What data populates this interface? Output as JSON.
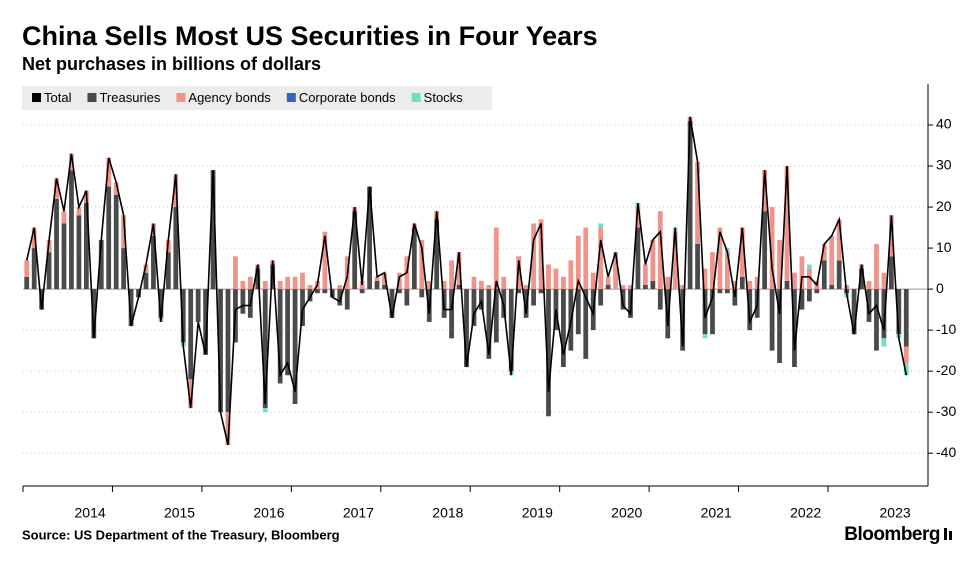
{
  "chart_data": {
    "type": "stacked-bar-line",
    "title": "China Sells Most US Securities in Four Years",
    "subtitle": "Net purchases in billions of dollars",
    "source": "Source: US Department of the Treasury, Bloomberg",
    "brand": "Bloomberg",
    "categories": [
      null,
      null,
      null,
      null,
      null,
      null,
      null,
      null,
      "2014",
      null,
      null,
      null,
      null,
      null,
      null,
      null,
      null,
      null,
      null,
      null,
      "2015",
      null,
      null,
      null,
      null,
      null,
      null,
      null,
      null,
      null,
      null,
      null,
      "2016",
      null,
      null,
      null,
      null,
      null,
      null,
      null,
      null,
      null,
      null,
      null,
      "2017",
      null,
      null,
      null,
      null,
      null,
      null,
      null,
      null,
      null,
      null,
      null,
      "2018",
      null,
      null,
      null,
      null,
      null,
      null,
      null,
      null,
      null,
      null,
      null,
      "2019",
      null,
      null,
      null,
      null,
      null,
      null,
      null,
      null,
      null,
      null,
      null,
      "2020",
      null,
      null,
      null,
      null,
      null,
      null,
      null,
      null,
      null,
      null,
      null,
      "2021",
      null,
      null,
      null,
      null,
      null,
      null,
      null,
      null,
      null,
      null,
      null,
      "2022",
      null,
      null,
      null,
      null,
      null,
      null,
      null,
      null,
      null,
      null,
      null,
      "2023",
      null,
      null
    ],
    "series": [
      {
        "name": "Total",
        "color": "#000000",
        "kind": "line",
        "values": [
          7,
          15,
          -5,
          12,
          27,
          19,
          33,
          20,
          24,
          -12,
          12,
          32,
          26,
          18,
          -9,
          -2,
          6,
          16,
          -8,
          12,
          28,
          -14,
          -29,
          -8,
          -16,
          29,
          -30,
          -38,
          -5,
          -4,
          -4,
          6,
          -28,
          7,
          -21,
          -18,
          -25,
          -5,
          -2,
          1,
          13,
          -2,
          -3,
          3,
          20,
          1,
          25,
          3,
          4,
          -7,
          3,
          4,
          16,
          10,
          -6,
          19,
          -5,
          -5,
          9,
          -19,
          -6,
          -3,
          -16,
          2,
          -4,
          -21,
          7,
          -6,
          12,
          16,
          -25,
          -5,
          -16,
          -8,
          2,
          -2,
          -6,
          12,
          3,
          9,
          -4,
          -6,
          21,
          6,
          12,
          14,
          -9,
          15,
          -14,
          42,
          31,
          -7,
          -2,
          14,
          9,
          -2,
          15,
          -8,
          -4,
          29,
          5,
          -6,
          30,
          -15,
          3,
          3,
          1,
          11,
          13,
          17,
          -1,
          -11,
          6,
          -6,
          -4,
          -10,
          18,
          -12,
          -21
        ]
      },
      {
        "name": "Treasuries",
        "color": "#4a4a4a",
        "kind": "bar",
        "values": [
          3,
          10,
          -5,
          9,
          22,
          16,
          29,
          18,
          21,
          -12,
          12,
          25,
          23,
          10,
          -9,
          -2,
          4,
          13,
          -7,
          9,
          20,
          -13,
          -22,
          -8,
          -16,
          29,
          -30,
          -30,
          -13,
          -6,
          -7,
          5,
          -29,
          6,
          -23,
          -21,
          -28,
          -9,
          -3,
          -1,
          -1,
          -2,
          -4,
          -5,
          19,
          -1,
          25,
          2,
          1,
          -7,
          -1,
          -4,
          15,
          -2,
          -8,
          17,
          -7,
          -12,
          1,
          -19,
          -9,
          -5,
          -17,
          -13,
          -7,
          -20,
          -1,
          -7,
          -4,
          -1,
          -31,
          -10,
          -19,
          -15,
          -11,
          -17,
          -10,
          -4,
          1,
          0,
          -5,
          -7,
          15,
          1,
          2,
          -5,
          -12,
          0,
          -15,
          41,
          11,
          -11,
          -11,
          -1,
          -1,
          -4,
          3,
          -10,
          -7,
          19,
          -15,
          -18,
          2,
          -19,
          -5,
          -3,
          -1,
          7,
          1,
          7,
          -1,
          -11,
          5,
          -8,
          -15,
          -12,
          8,
          -11,
          -14
        ]
      },
      {
        "name": "Agency bonds",
        "color": "#f0938a",
        "kind": "bar",
        "values": [
          4,
          5,
          0,
          3,
          5,
          3,
          4,
          2,
          3,
          0,
          0,
          7,
          3,
          8,
          0,
          0,
          2,
          3,
          0,
          3,
          8,
          0,
          -7,
          0,
          0,
          0,
          0,
          -8,
          8,
          2,
          3,
          1,
          2,
          1,
          2,
          3,
          3,
          4,
          1,
          2,
          14,
          0,
          1,
          8,
          1,
          2,
          0,
          1,
          3,
          0,
          4,
          8,
          1,
          12,
          2,
          2,
          2,
          7,
          8,
          0,
          3,
          2,
          1,
          15,
          3,
          0,
          8,
          1,
          16,
          17,
          6,
          5,
          3,
          7,
          13,
          15,
          4,
          15,
          2,
          9,
          1,
          1,
          5,
          5,
          10,
          19,
          3,
          14,
          1,
          1,
          20,
          5,
          9,
          15,
          9,
          2,
          12,
          2,
          3,
          10,
          20,
          12,
          28,
          4,
          8,
          5,
          2,
          4,
          12,
          10,
          1,
          0,
          1,
          2,
          11,
          4,
          10,
          0,
          -4
        ]
      },
      {
        "name": "Corporate bonds",
        "color": "#3b5fc9",
        "kind": "bar",
        "values": [
          0,
          0,
          0,
          0,
          0,
          0,
          0,
          0,
          0,
          0,
          0,
          0,
          0,
          0,
          0,
          0,
          0,
          0,
          0,
          0,
          0,
          0,
          0,
          0,
          0,
          0,
          0,
          0,
          0,
          0,
          0,
          0,
          0,
          0,
          0,
          0,
          0,
          0,
          0,
          0,
          0,
          0,
          0,
          0,
          0,
          0,
          0,
          0,
          0,
          0,
          0,
          0,
          0,
          0,
          0,
          0,
          0,
          0,
          0,
          0,
          0,
          0,
          0,
          0,
          0,
          0,
          0,
          0,
          0,
          0,
          0,
          0,
          0,
          0,
          0,
          0,
          0,
          0,
          0,
          0,
          0,
          0,
          0,
          0,
          0,
          0,
          0,
          0,
          0,
          0,
          0,
          0,
          0,
          0,
          0,
          0,
          0,
          0,
          0,
          0,
          0,
          0,
          0,
          0,
          0,
          0,
          0,
          0,
          0,
          0,
          0,
          0,
          0,
          0,
          0,
          0,
          0,
          0,
          0
        ]
      },
      {
        "name": "Stocks",
        "color": "#6fe0c2",
        "kind": "bar",
        "values": [
          0,
          0,
          0,
          0,
          0,
          0,
          0,
          0,
          0,
          0,
          0,
          0,
          0,
          0,
          0,
          0,
          0,
          0,
          -1,
          0,
          0,
          -1,
          0,
          0,
          0,
          0,
          0,
          0,
          0,
          0,
          0,
          0,
          -1,
          0,
          0,
          0,
          0,
          0,
          0,
          0,
          0,
          0,
          0,
          0,
          0,
          0,
          0,
          0,
          0,
          0,
          0,
          0,
          0,
          0,
          0,
          0,
          0,
          0,
          0,
          0,
          0,
          0,
          0,
          0,
          0,
          -1,
          0,
          0,
          0,
          0,
          0,
          0,
          0,
          0,
          0,
          0,
          0,
          1,
          0,
          0,
          0,
          0,
          1,
          0,
          0,
          0,
          0,
          1,
          0,
          0,
          0,
          -1,
          0,
          0,
          1,
          0,
          0,
          0,
          0,
          0,
          0,
          0,
          0,
          0,
          0,
          1,
          0,
          0,
          0,
          0,
          -1,
          0,
          0,
          0,
          0,
          -2,
          0,
          -1,
          -3
        ]
      }
    ],
    "ylim": [
      -48,
      50
    ],
    "yticks": [
      -40,
      -30,
      -20,
      -10,
      0,
      10,
      20,
      30,
      40
    ],
    "grid": true
  }
}
